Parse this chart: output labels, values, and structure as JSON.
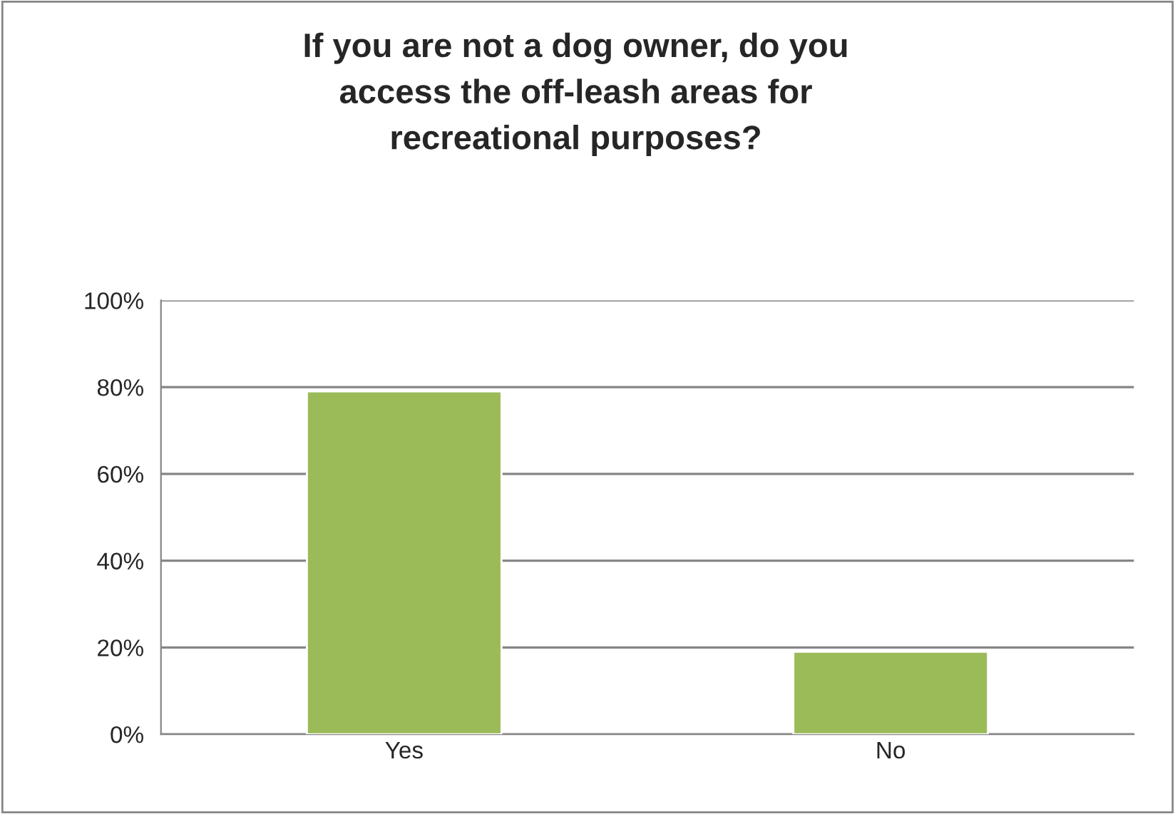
{
  "chart_data": {
    "type": "bar",
    "title": "If you are not a dog owner, do you\naccess the off-leash areas for\nrecreational purposes?",
    "categories": [
      "Yes",
      "No"
    ],
    "values": [
      79,
      19
    ],
    "color": "#9bbb59",
    "ylim": [
      0,
      100
    ],
    "yticks": [
      {
        "value": 0,
        "label": "0%"
      },
      {
        "value": 20,
        "label": "20%"
      },
      {
        "value": 40,
        "label": "40%"
      },
      {
        "value": 60,
        "label": "60%"
      },
      {
        "value": 80,
        "label": "80%"
      },
      {
        "value": 100,
        "label": "100%"
      }
    ],
    "grid": "y",
    "legend": false
  }
}
